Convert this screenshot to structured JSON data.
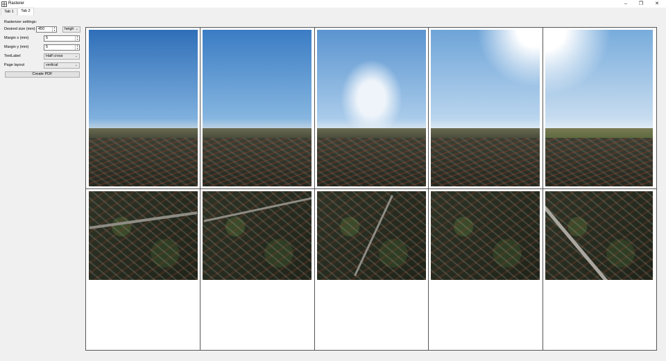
{
  "window": {
    "title": "Rasterer",
    "minimize_icon": "minimize-icon",
    "restore_icon": "restore-icon",
    "close_icon": "close-icon"
  },
  "tabs": [
    {
      "label": "Tab 1"
    },
    {
      "label": "Tab 2"
    }
  ],
  "settings": {
    "heading": "Rasterizer settings:",
    "desired_size": {
      "label": "Desired size (mm)",
      "value": "450",
      "mode": "heigh"
    },
    "margin_x": {
      "label": "Margin x (mm)",
      "value": "5"
    },
    "margin_y": {
      "label": "Margin y (mm)",
      "value": "5"
    },
    "text_label": {
      "label": "TextLabel",
      "value": "Half cross"
    },
    "page_layout": {
      "label": "Page layout",
      "value": "vertical"
    },
    "create_button": "Create PDF"
  },
  "preview": {
    "columns": 5,
    "rows": 2
  }
}
